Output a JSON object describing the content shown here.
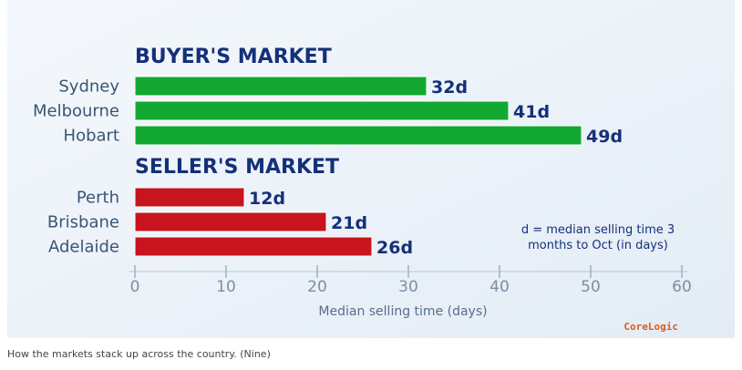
{
  "chart_data": {
    "type": "bar",
    "orientation": "horizontal",
    "series": [
      {
        "name": "BUYER'S MARKET",
        "color": "#13a832",
        "categories": [
          "Sydney",
          "Melbourne",
          "Hobart"
        ],
        "values": [
          32,
          41,
          49
        ],
        "value_labels": [
          "32d",
          "41d",
          "49d"
        ]
      },
      {
        "name": "SELLER'S MARKET",
        "color": "#c8141e",
        "categories": [
          "Perth",
          "Brisbane",
          "Adelaide"
        ],
        "values": [
          12,
          21,
          26
        ],
        "value_labels": [
          "12d",
          "21d",
          "26d"
        ]
      }
    ],
    "xlim": [
      0,
      60
    ],
    "xticks": [
      0,
      10,
      20,
      30,
      40,
      50,
      60
    ],
    "xlabel": "Median selling time (days)",
    "annotation": "d = median selling time 3 months to Oct (in days)",
    "source": "CoreLogic",
    "caption": "How the markets stack up across the country. (Nine)"
  }
}
